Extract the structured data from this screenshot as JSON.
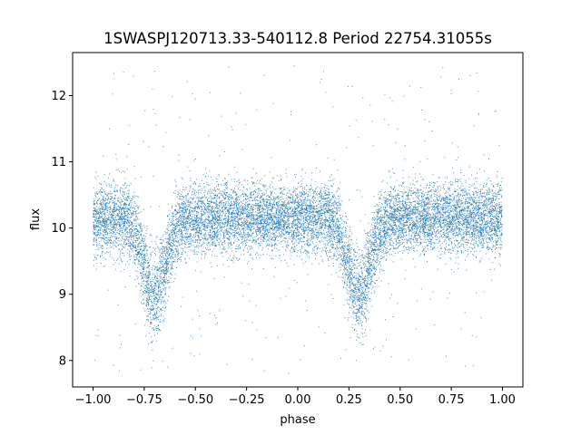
{
  "chart_data": {
    "type": "scatter",
    "title": "1SWASPJ120713.33-540112.8 Period 22754.31055s",
    "xlabel": "phase",
    "ylabel": "flux",
    "xlim": [
      -1.1,
      1.1
    ],
    "ylim": [
      7.6,
      12.65
    ],
    "x_ticks": [
      -1.0,
      -0.75,
      -0.5,
      -0.25,
      0.0,
      0.25,
      0.5,
      0.75,
      1.0
    ],
    "x_tick_labels": [
      "−1.00",
      "−0.75",
      "−0.50",
      "−0.25",
      "0.00",
      "0.25",
      "0.50",
      "0.75",
      "1.00"
    ],
    "y_ticks": [
      8,
      9,
      10,
      11,
      12
    ],
    "y_tick_labels": [
      "8",
      "9",
      "10",
      "11",
      "12"
    ],
    "grid": false,
    "point_color": "#1f77b4",
    "series": [
      {
        "phase_range": [
          -1.0,
          1.0
        ],
        "baseline_flux": 10.15,
        "dips": [
          {
            "center_phase": -0.7,
            "min_flux": 9.0
          },
          {
            "center_phase": 0.3,
            "min_flux": 9.0
          }
        ],
        "flux_range": [
          7.8,
          12.45
        ]
      }
    ]
  }
}
